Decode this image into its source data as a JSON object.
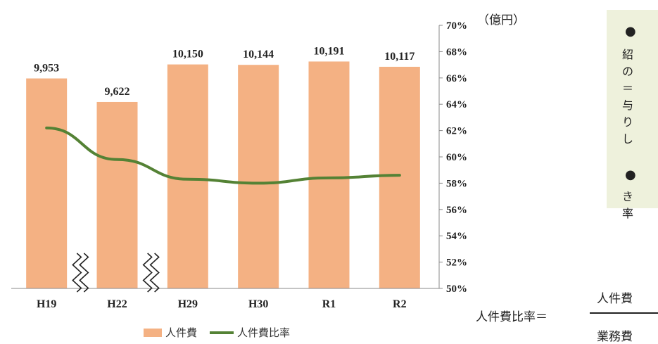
{
  "chart_data": {
    "type": "bar",
    "categories": [
      "H19",
      "H22",
      "H29",
      "H30",
      "R1",
      "R2"
    ],
    "series": [
      {
        "name": "人件費",
        "type": "bar",
        "values": [
          9953,
          9622,
          10150,
          10144,
          10191,
          10117
        ],
        "labels": [
          "9,953",
          "9,622",
          "10,150",
          "10,144",
          "10,191",
          "10,117"
        ],
        "color": "#f4b183"
      },
      {
        "name": "人件費比率",
        "type": "line",
        "axis": "right",
        "values": [
          62.2,
          59.8,
          58.3,
          58.0,
          58.4,
          58.6
        ],
        "color": "#548235"
      }
    ],
    "y_right": {
      "label": "（億円）",
      "range": [
        50,
        70
      ],
      "ticks": [
        "50%",
        "52%",
        "54%",
        "56%",
        "58%",
        "60%",
        "62%",
        "64%",
        "66%",
        "68%",
        "70%"
      ]
    },
    "axis_breaks_after": [
      "H19",
      "H22"
    ],
    "grid": false,
    "legend_position": "bottom"
  },
  "notes": {
    "bullet_symbol": "●",
    "lines_1": [
      "紹",
      "の",
      "＝",
      "与",
      "り",
      "し"
    ],
    "lines_2": [
      "き",
      "率"
    ]
  },
  "formula": {
    "lhs": "人件費比率＝",
    "numerator": "人件費",
    "denominator": "業務費"
  }
}
